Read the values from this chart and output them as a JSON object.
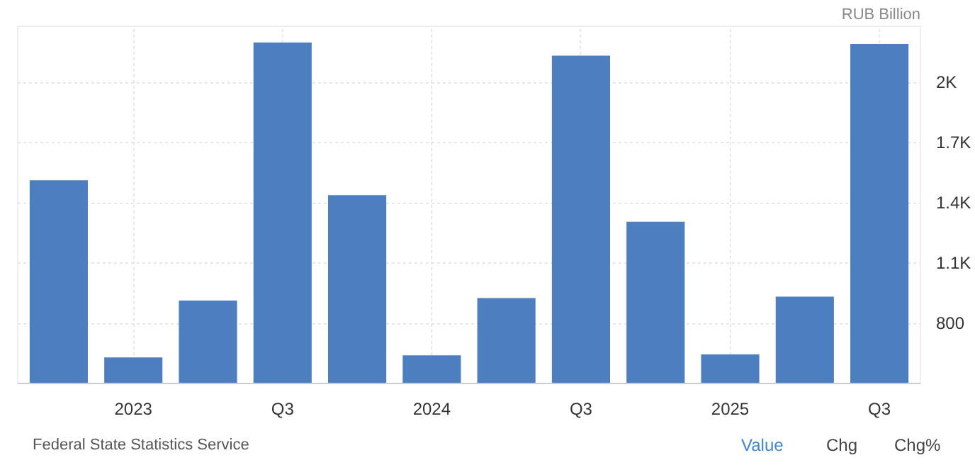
{
  "chart_data": {
    "type": "bar",
    "ylabel": "RUB Billion",
    "categories": [
      null,
      "2023",
      null,
      "Q3",
      null,
      "2024",
      null,
      "Q3",
      null,
      "2025",
      null,
      "Q3"
    ],
    "values": [
      1513,
      630,
      913,
      2199,
      1439,
      640,
      926,
      2133,
      1306,
      645,
      933,
      2192
    ],
    "color": "#4d7ebf",
    "ylim": [
      500,
      2280
    ],
    "yticks": [
      800,
      {
        "value": 1100,
        "label": "1.1K"
      },
      {
        "value": 1400,
        "label": "1.4K"
      },
      {
        "value": 1700,
        "label": "1.7K"
      },
      {
        "value": 2000,
        "label": "2K"
      }
    ],
    "grid": true,
    "annotations": [
      "Federal State Statistics Service",
      "Value",
      "Chg",
      "Chg%"
    ]
  }
}
